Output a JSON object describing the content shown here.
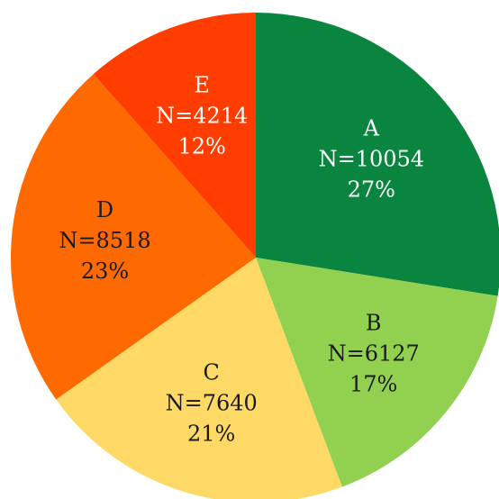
{
  "chart_data": {
    "type": "pie",
    "start_angle": "12 o'clock",
    "direction": "clockwise",
    "slices": [
      {
        "category": "A",
        "count_label": "N=10054",
        "value": 10054,
        "percent_label": "27%",
        "percent": 27,
        "color": "#0a8540",
        "text_color": "#ffffff"
      },
      {
        "category": "B",
        "count_label": "N=6127",
        "value": 6127,
        "percent_label": "17%",
        "percent": 17,
        "color": "#92d050",
        "text_color": "#1a1a1a"
      },
      {
        "category": "C",
        "count_label": "N=7640",
        "value": 7640,
        "percent_label": "21%",
        "percent": 21,
        "color": "#ffd966",
        "text_color": "#1a1a1a"
      },
      {
        "category": "D",
        "count_label": "N=8518",
        "value": 8518,
        "percent_label": "23%",
        "percent": 23,
        "color": "#ff6a00",
        "text_color": "#1a1a1a"
      },
      {
        "category": "E",
        "count_label": "N=4214",
        "value": 4214,
        "percent_label": "12%",
        "percent": 12,
        "color": "#ff3d00",
        "text_color": "#ffffff"
      }
    ]
  }
}
